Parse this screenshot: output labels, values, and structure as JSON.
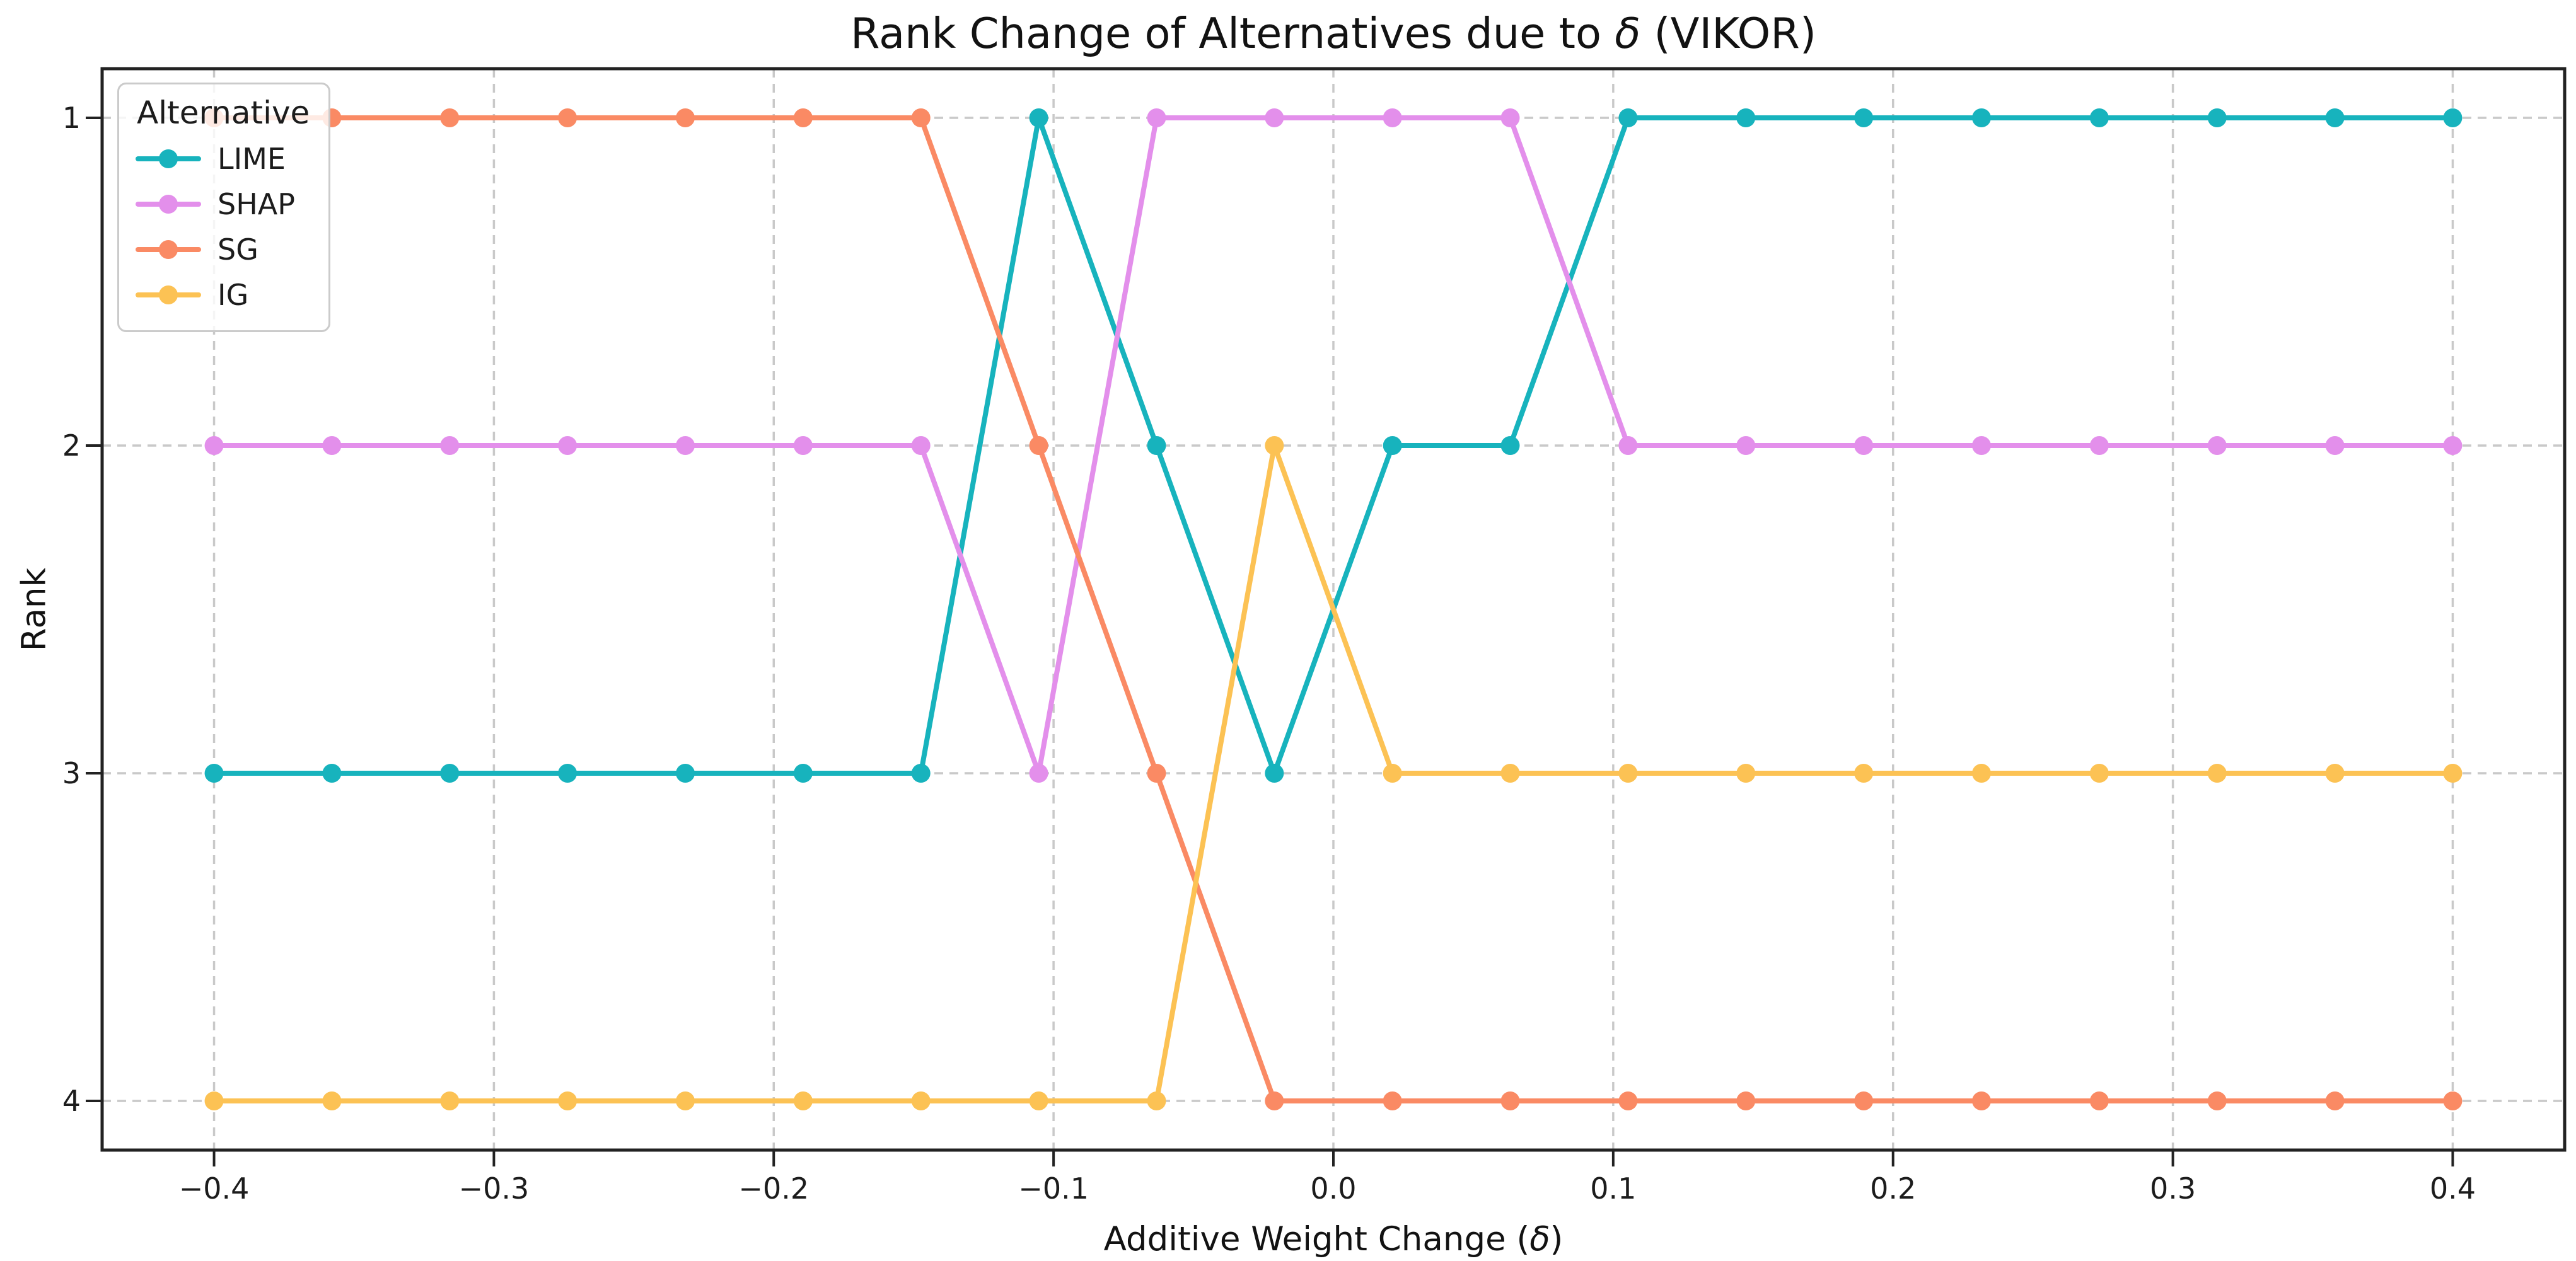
{
  "chart_data": {
    "type": "line",
    "title": {
      "prefix": "Rank Change of Alternatives due to ",
      "delta": "δ",
      "suffix": " (VIKOR)"
    },
    "xlabel": {
      "prefix": "Additive Weight Change (",
      "delta": "δ",
      "suffix": ")"
    },
    "ylabel": "Rank",
    "legend_title": "Alternative",
    "legend_position": "upper-left-inside",
    "grid": {
      "style": "dashed",
      "color": "#c9c9c9"
    },
    "axis_color": "#222222",
    "background_color": "#ffffff",
    "xlim": [
      -0.44,
      0.44
    ],
    "ylim": [
      0.85,
      4.15
    ],
    "y_axis_inverted": true,
    "x": [
      -0.4,
      -0.3579,
      -0.3158,
      -0.2737,
      -0.2316,
      -0.1895,
      -0.1474,
      -0.1053,
      -0.0632,
      -0.0211,
      0.0211,
      0.0632,
      0.1053,
      0.1474,
      0.1895,
      0.2316,
      0.2737,
      0.3158,
      0.3579,
      0.4
    ],
    "series": [
      {
        "name": "LIME",
        "color": "#17b3bd",
        "ranks": [
          3,
          3,
          3,
          3,
          3,
          3,
          3,
          1,
          2,
          3,
          2,
          2,
          1,
          1,
          1,
          1,
          1,
          1,
          1,
          1
        ]
      },
      {
        "name": "SHAP",
        "color": "#e38feb",
        "ranks": [
          2,
          2,
          2,
          2,
          2,
          2,
          2,
          3,
          1,
          1,
          1,
          1,
          2,
          2,
          2,
          2,
          2,
          2,
          2,
          2
        ]
      },
      {
        "name": "SG",
        "color": "#fa8a64",
        "ranks": [
          1,
          1,
          1,
          1,
          1,
          1,
          1,
          2,
          3,
          4,
          4,
          4,
          4,
          4,
          4,
          4,
          4,
          4,
          4,
          4
        ]
      },
      {
        "name": "IG",
        "color": "#fcc254",
        "ranks": [
          4,
          4,
          4,
          4,
          4,
          4,
          4,
          4,
          4,
          2,
          3,
          3,
          3,
          3,
          3,
          3,
          3,
          3,
          3,
          3
        ]
      }
    ],
    "x_ticks": {
      "values": [
        -0.4,
        -0.3,
        -0.2,
        -0.1,
        0.0,
        0.1,
        0.2,
        0.3,
        0.4
      ],
      "labels": [
        "−0.4",
        "−0.3",
        "−0.2",
        "−0.1",
        "0.0",
        "0.1",
        "0.2",
        "0.3",
        "0.4"
      ]
    },
    "y_ticks": {
      "values": [
        1,
        2,
        3,
        4
      ],
      "labels": [
        "1",
        "2",
        "3",
        "4"
      ]
    }
  }
}
